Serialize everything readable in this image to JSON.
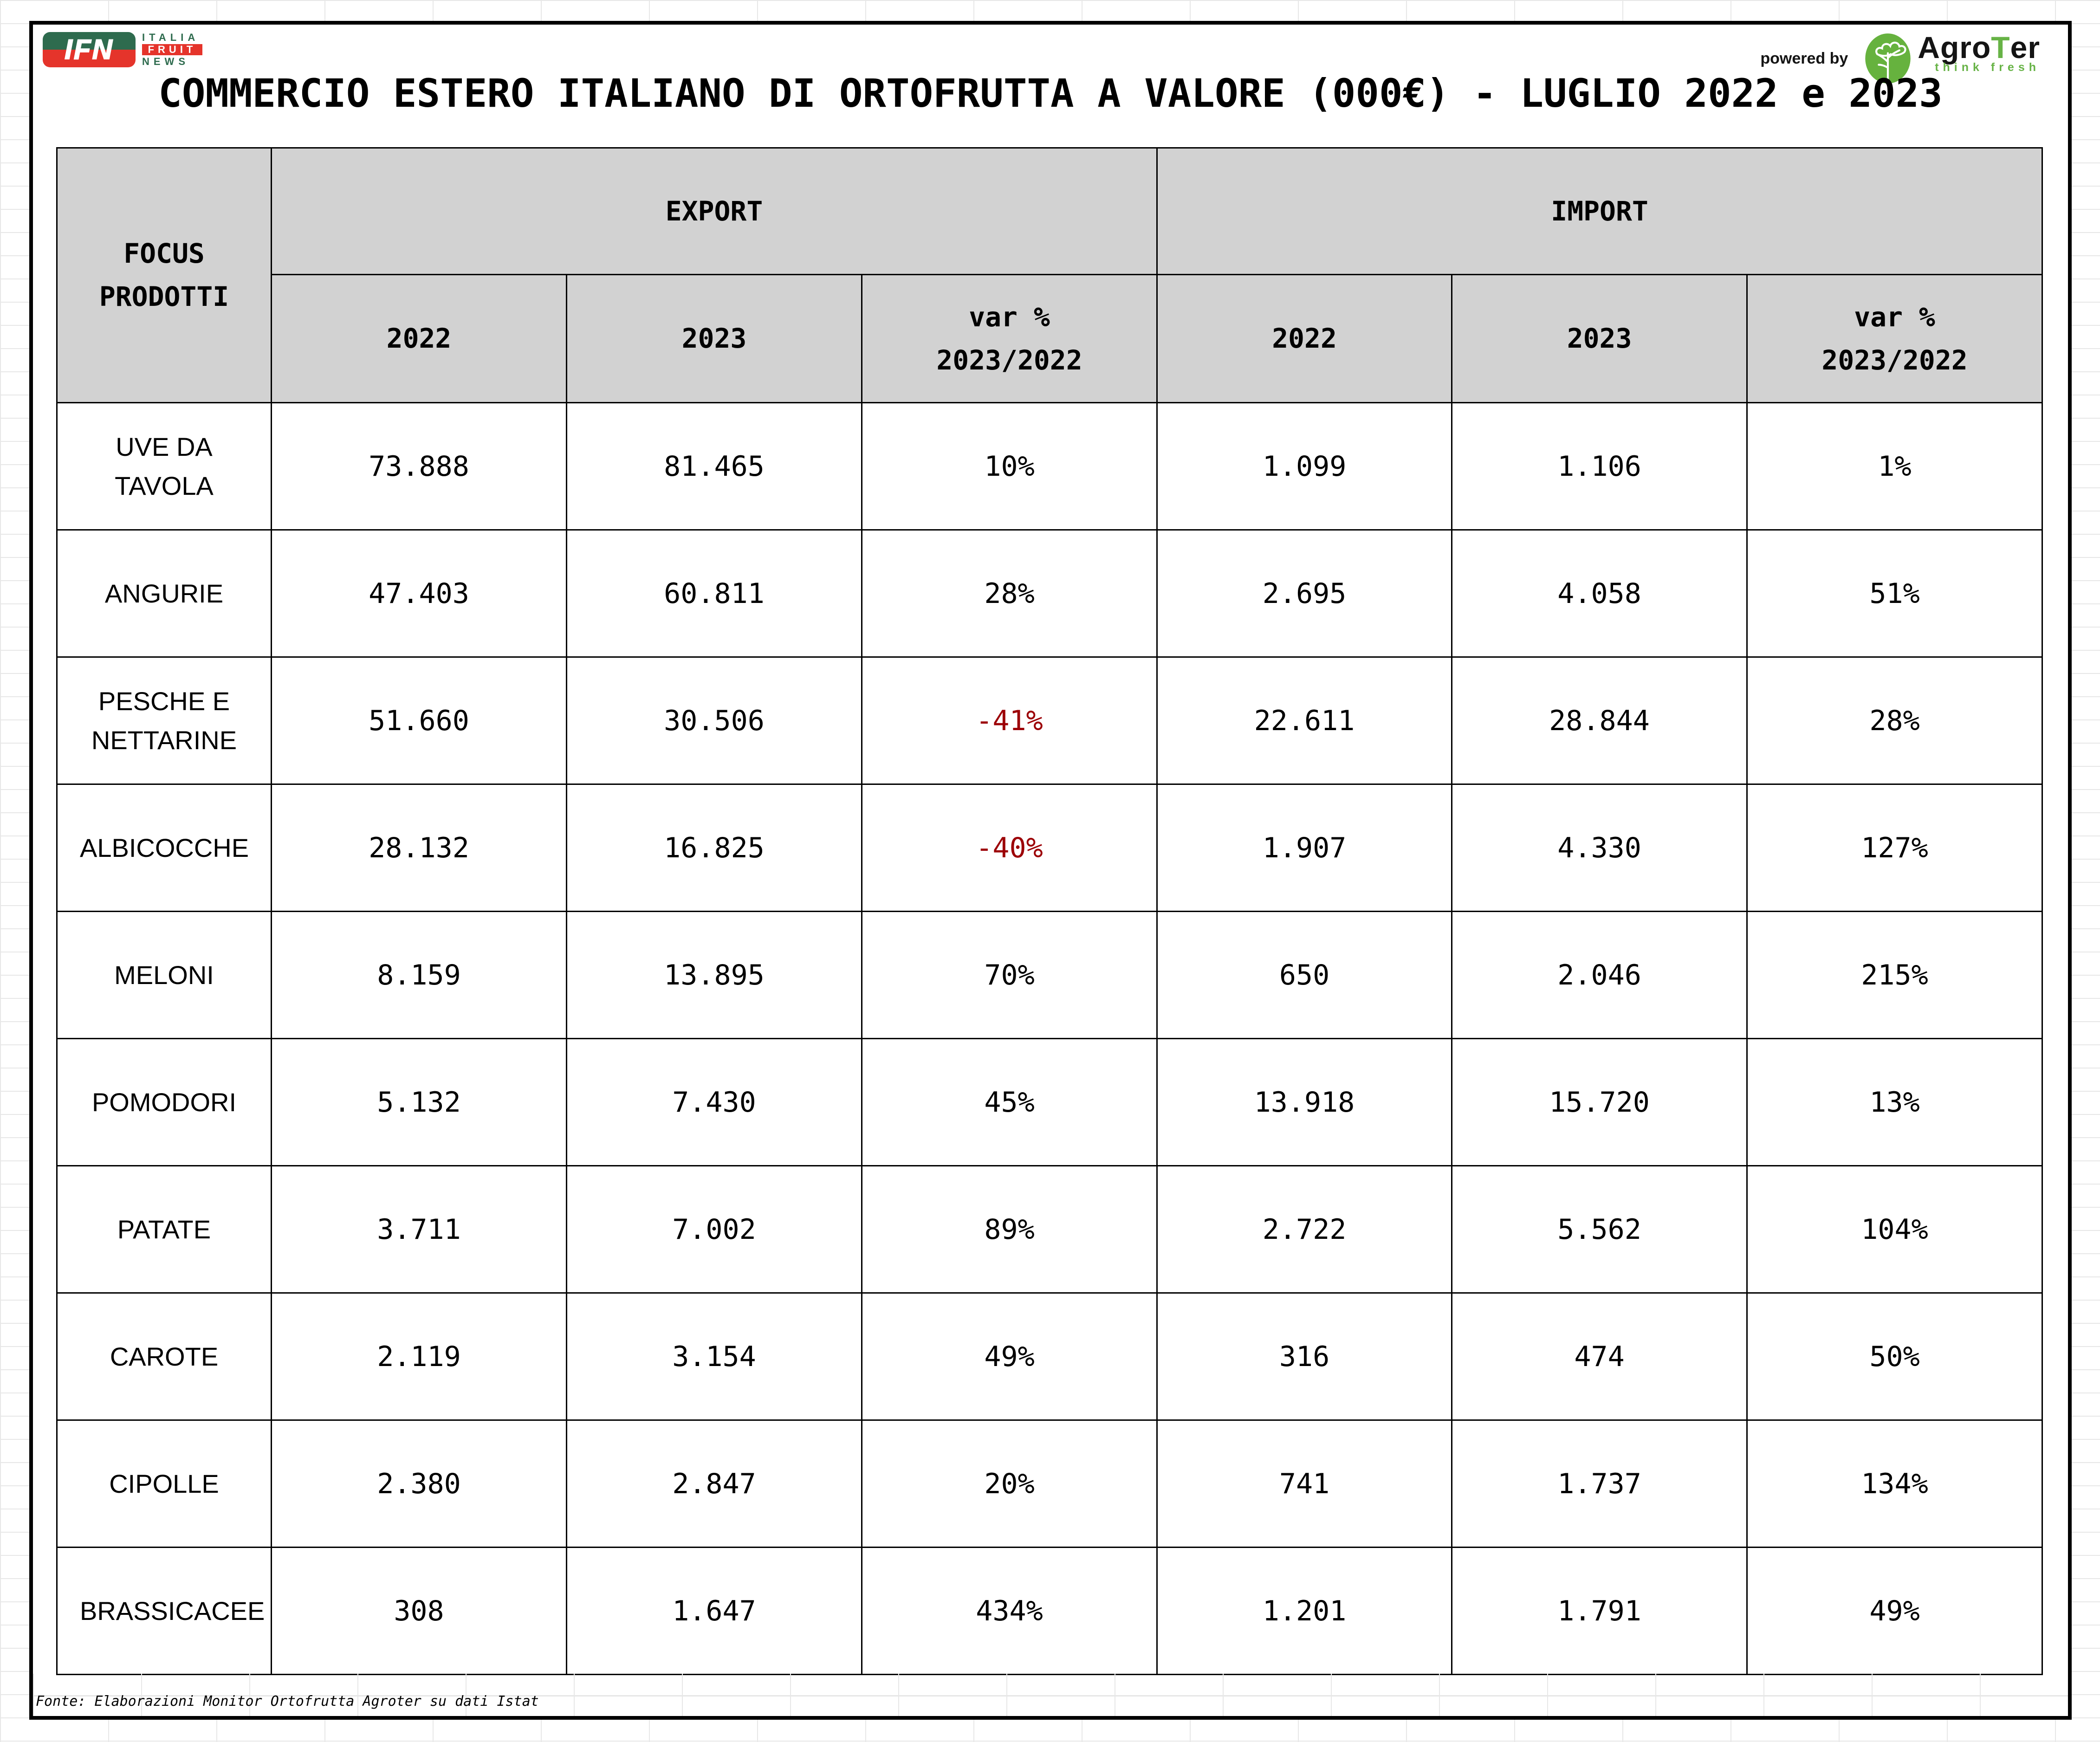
{
  "title": "COMMERCIO ESTERO ITALIANO DI ORTOFRUTTA A VALORE (000€) - LUGLIO 2022 e 2023",
  "brand": {
    "ifn_badge": "IFN",
    "ifn_lines": [
      "ITALIA",
      "FRUIT",
      "NEWS"
    ],
    "powered_by": "powered by",
    "agroter_pre": "Agro",
    "agroter_t": "T",
    "agroter_post": "er",
    "agroter_tagline": "think fresh"
  },
  "table": {
    "corner_lines": [
      "FOCUS",
      "PRODOTTI"
    ],
    "groups": [
      "EXPORT",
      "IMPORT"
    ],
    "sub": {
      "year1": "2022",
      "year2": "2023",
      "var1": "var %",
      "var2": "2023/2022"
    },
    "rows": [
      {
        "label": "UVE DA TAVOLA",
        "export": [
          "73.888",
          "81.465",
          "10%"
        ],
        "import": [
          "1.099",
          "1.106",
          "1%"
        ]
      },
      {
        "label": "ANGURIE",
        "export": [
          "47.403",
          "60.811",
          "28%"
        ],
        "import": [
          "2.695",
          "4.058",
          "51%"
        ]
      },
      {
        "label": "PESCHE E NETTARINE",
        "export": [
          "51.660",
          "30.506",
          "-41%"
        ],
        "import": [
          "22.611",
          "28.844",
          "28%"
        ]
      },
      {
        "label": "ALBICOCCHE",
        "export": [
          "28.132",
          "16.825",
          "-40%"
        ],
        "import": [
          "1.907",
          "4.330",
          "127%"
        ]
      },
      {
        "label": "MELONI",
        "export": [
          "8.159",
          "13.895",
          "70%"
        ],
        "import": [
          "650",
          "2.046",
          "215%"
        ]
      },
      {
        "label": "POMODORI",
        "export": [
          "5.132",
          "7.430",
          "45%"
        ],
        "import": [
          "13.918",
          "15.720",
          "13%"
        ]
      },
      {
        "label": "PATATE",
        "export": [
          "3.711",
          "7.002",
          "89%"
        ],
        "import": [
          "2.722",
          "5.562",
          "104%"
        ]
      },
      {
        "label": "CAROTE",
        "export": [
          "2.119",
          "3.154",
          "49%"
        ],
        "import": [
          "316",
          "474",
          "50%"
        ]
      },
      {
        "label": "CIPOLLE",
        "export": [
          "2.380",
          "2.847",
          "20%"
        ],
        "import": [
          "741",
          "1.737",
          "134%"
        ]
      },
      {
        "label": "BRASSICACEE",
        "export": [
          "308",
          "1.647",
          "434%"
        ],
        "import": [
          "1.201",
          "1.791",
          "49%"
        ]
      }
    ]
  },
  "footer": {
    "text": "Fonte: Elaborazioni Monitor Ortofrutta Agroter su dati Istat"
  },
  "colors": {
    "header_bg": "#D2D2D2",
    "negative_value_red": "#9C0006",
    "ifn_green": "#2E6B4E",
    "ifn_red": "#E5342B",
    "agroter_green": "#67B346"
  },
  "chart_data": {
    "type": "table",
    "title": "COMMERCIO ESTERO ITALIANO DI ORTOFRUTTA A VALORE (000€) - LUGLIO 2022 e 2023",
    "categories": [
      "UVE DA TAVOLA",
      "ANGURIE",
      "PESCHE E NETTARINE",
      "ALBICOCCHE",
      "MELONI",
      "POMODORI",
      "PATATE",
      "CAROTE",
      "CIPOLLE",
      "BRASSICACEE"
    ],
    "series": [
      {
        "name": "EXPORT 2022 (000€)",
        "values": [
          73888,
          47403,
          51660,
          28132,
          8159,
          5132,
          3711,
          2119,
          2380,
          308
        ]
      },
      {
        "name": "EXPORT 2023 (000€)",
        "values": [
          81465,
          60811,
          30506,
          16825,
          13895,
          7430,
          7002,
          3154,
          2847,
          1647
        ]
      },
      {
        "name": "EXPORT var % 2023/2022",
        "values": [
          10,
          28,
          -41,
          -40,
          70,
          45,
          89,
          49,
          20,
          434
        ]
      },
      {
        "name": "IMPORT 2022 (000€)",
        "values": [
          1099,
          2695,
          22611,
          1907,
          650,
          13918,
          2722,
          316,
          741,
          1201
        ]
      },
      {
        "name": "IMPORT 2023 (000€)",
        "values": [
          1106,
          4058,
          28844,
          4330,
          2046,
          15720,
          5562,
          474,
          1737,
          1791
        ]
      },
      {
        "name": "IMPORT var % 2023/2022",
        "values": [
          1,
          51,
          28,
          127,
          215,
          13,
          104,
          50,
          134,
          49
        ]
      }
    ],
    "source": "Fonte: Elaborazioni Monitor Ortofrutta Agroter su dati Istat"
  }
}
